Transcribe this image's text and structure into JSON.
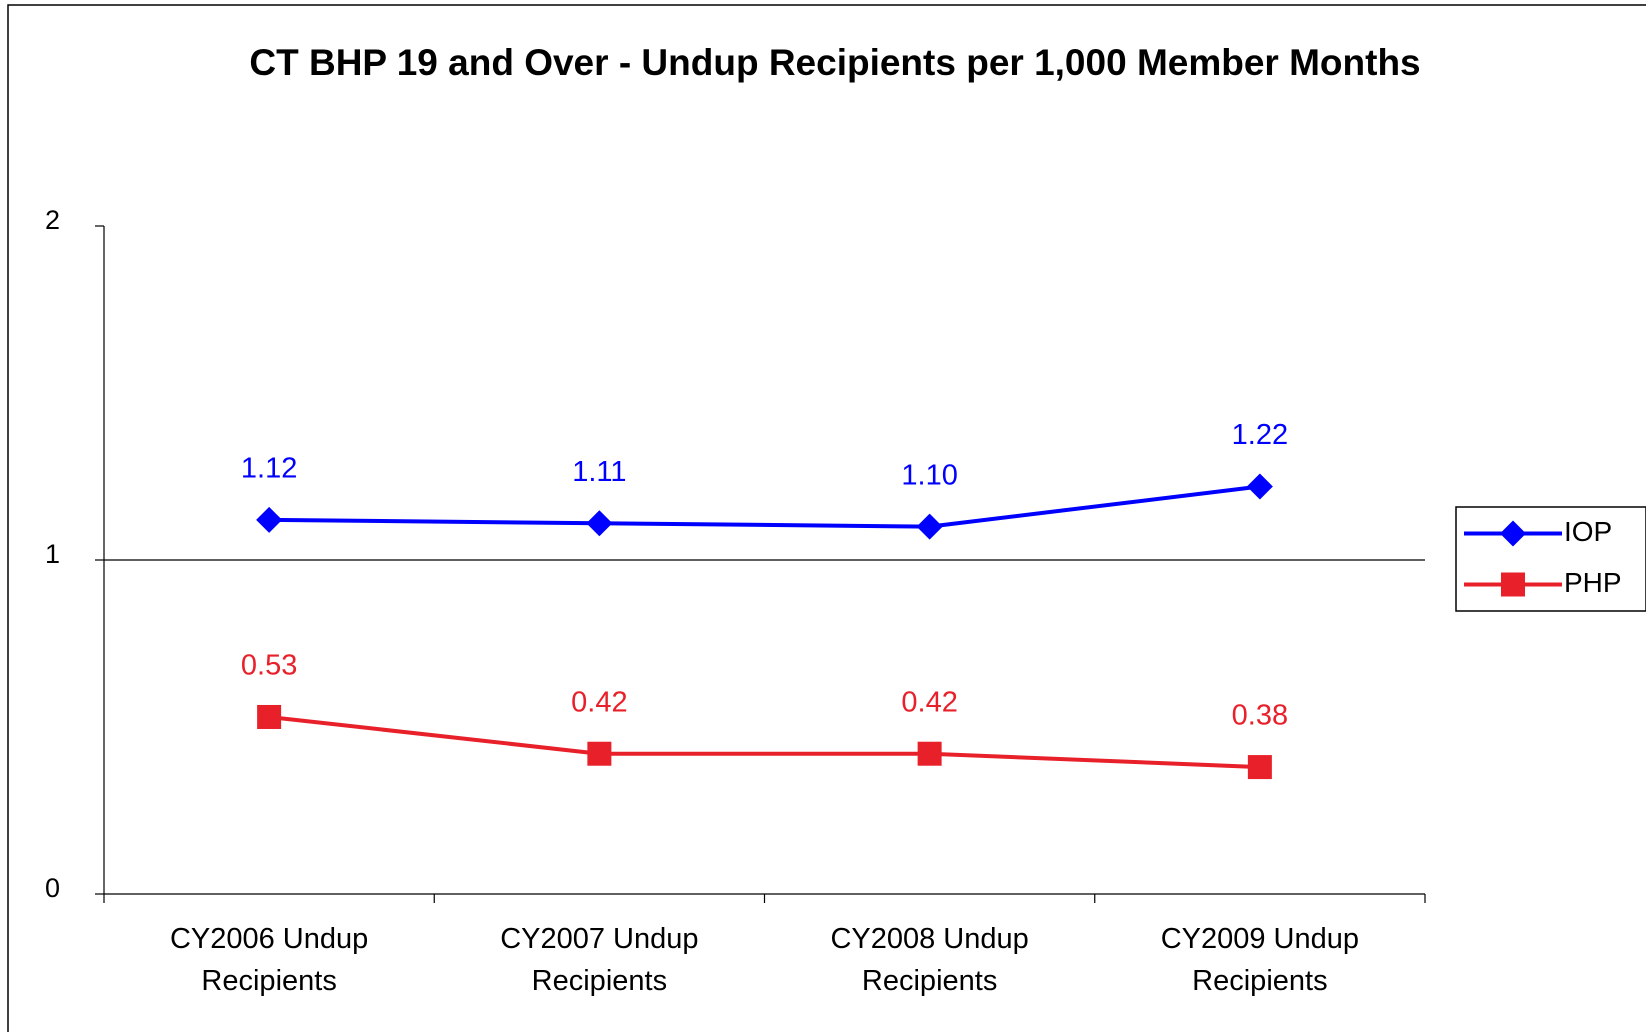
{
  "chart_data": {
    "type": "line",
    "title": "CT BHP 19 and Over - Undup Recipients per 1,000 Member Months",
    "categories": [
      "CY2006 Undup Recipients",
      "CY2007 Undup Recipients",
      "CY2008 Undup Recipients",
      "CY2009 Undup Recipients"
    ],
    "series": [
      {
        "name": "IOP",
        "color": "#0000ff",
        "marker": "diamond",
        "values": [
          1.12,
          1.11,
          1.1,
          1.22
        ],
        "value_labels": [
          "1.12",
          "1.11",
          "1.10",
          "1.22"
        ]
      },
      {
        "name": "PHP",
        "color": "#e8202a",
        "marker": "square",
        "values": [
          0.53,
          0.42,
          0.42,
          0.38
        ],
        "value_labels": [
          "0.53",
          "0.42",
          "0.42",
          "0.38"
        ]
      }
    ],
    "ylim": [
      0,
      2
    ],
    "yticks": [
      0,
      1,
      2
    ],
    "grid": true,
    "legend": "right"
  }
}
